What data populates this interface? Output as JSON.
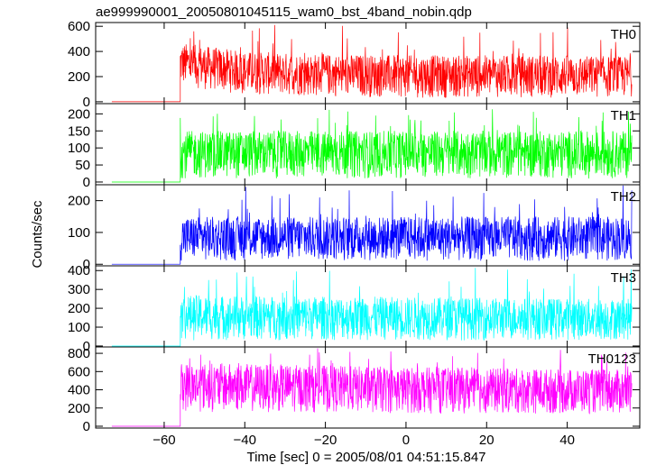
{
  "chart_data": {
    "type": "line",
    "title": "ae999990001_20050801045115_wam0_bst_4band_nobin.qdp",
    "xlabel": "Time [sec] 0 = 2005/08/01 04:51:15.847",
    "ylabel": "Counts/sec",
    "xlim": [
      -77,
      58
    ],
    "xticks": [
      -60,
      -40,
      -20,
      0,
      20,
      40
    ],
    "xtick_labels": [
      "−60",
      "−40",
      "−20",
      "0",
      "20",
      "40"
    ],
    "grid": false,
    "x_range": [
      -73,
      56
    ],
    "burst_onset": -56,
    "panels": [
      {
        "name": "TH0",
        "color": "#ff0000",
        "ylim": [
          -15,
          630
        ],
        "yticks": [
          0,
          200,
          400,
          600
        ],
        "pre_burst_level": 0,
        "mean_level": 210,
        "envelope": [
          {
            "x": -56,
            "lo": 120,
            "hi": 470
          },
          {
            "x": -40,
            "lo": 55,
            "hi": 400
          },
          {
            "x": -20,
            "lo": 40,
            "hi": 380
          },
          {
            "x": 0,
            "lo": 30,
            "hi": 370
          },
          {
            "x": 20,
            "lo": 30,
            "hi": 370
          },
          {
            "x": 40,
            "lo": 30,
            "hi": 370
          },
          {
            "x": 56,
            "lo": 30,
            "hi": 360
          }
        ],
        "spike_max": 620
      },
      {
        "name": "TH1",
        "color": "#00ff00",
        "ylim": [
          -8,
          230
        ],
        "yticks": [
          0,
          50,
          100,
          150,
          200
        ],
        "pre_burst_level": 0,
        "mean_level": 60,
        "envelope": [
          {
            "x": -56,
            "lo": 10,
            "hi": 150
          },
          {
            "x": 0,
            "lo": 10,
            "hi": 150
          },
          {
            "x": 56,
            "lo": 10,
            "hi": 150
          }
        ],
        "spike_max": 215
      },
      {
        "name": "TH2",
        "color": "#0000ff",
        "ylim": [
          -5,
          250
        ],
        "yticks": [
          0,
          100,
          200
        ],
        "pre_burst_level": 0,
        "mean_level": 75,
        "envelope": [
          {
            "x": -56,
            "lo": 10,
            "hi": 150
          },
          {
            "x": 0,
            "lo": 10,
            "hi": 150
          },
          {
            "x": 56,
            "lo": 10,
            "hi": 150
          }
        ],
        "spike_max": 250
      },
      {
        "name": "TH3",
        "color": "#00ffff",
        "ylim": [
          -5,
          425
        ],
        "yticks": [
          0,
          100,
          200,
          300,
          400
        ],
        "pre_burst_level": 0,
        "mean_level": 140,
        "envelope": [
          {
            "x": -56,
            "lo": 30,
            "hi": 270
          },
          {
            "x": 0,
            "lo": 30,
            "hi": 260
          },
          {
            "x": 56,
            "lo": 30,
            "hi": 250
          }
        ],
        "spike_max": 415
      },
      {
        "name": "TH0123",
        "color": "#ff00ff",
        "ylim": [
          -20,
          870
        ],
        "yticks": [
          0,
          200,
          400,
          600,
          800
        ],
        "pre_burst_level": 0,
        "mean_level": 400,
        "envelope": [
          {
            "x": -56,
            "lo": 160,
            "hi": 700
          },
          {
            "x": 0,
            "lo": 140,
            "hi": 650
          },
          {
            "x": 56,
            "lo": 130,
            "hi": 620
          }
        ],
        "spike_max": 860
      }
    ]
  }
}
